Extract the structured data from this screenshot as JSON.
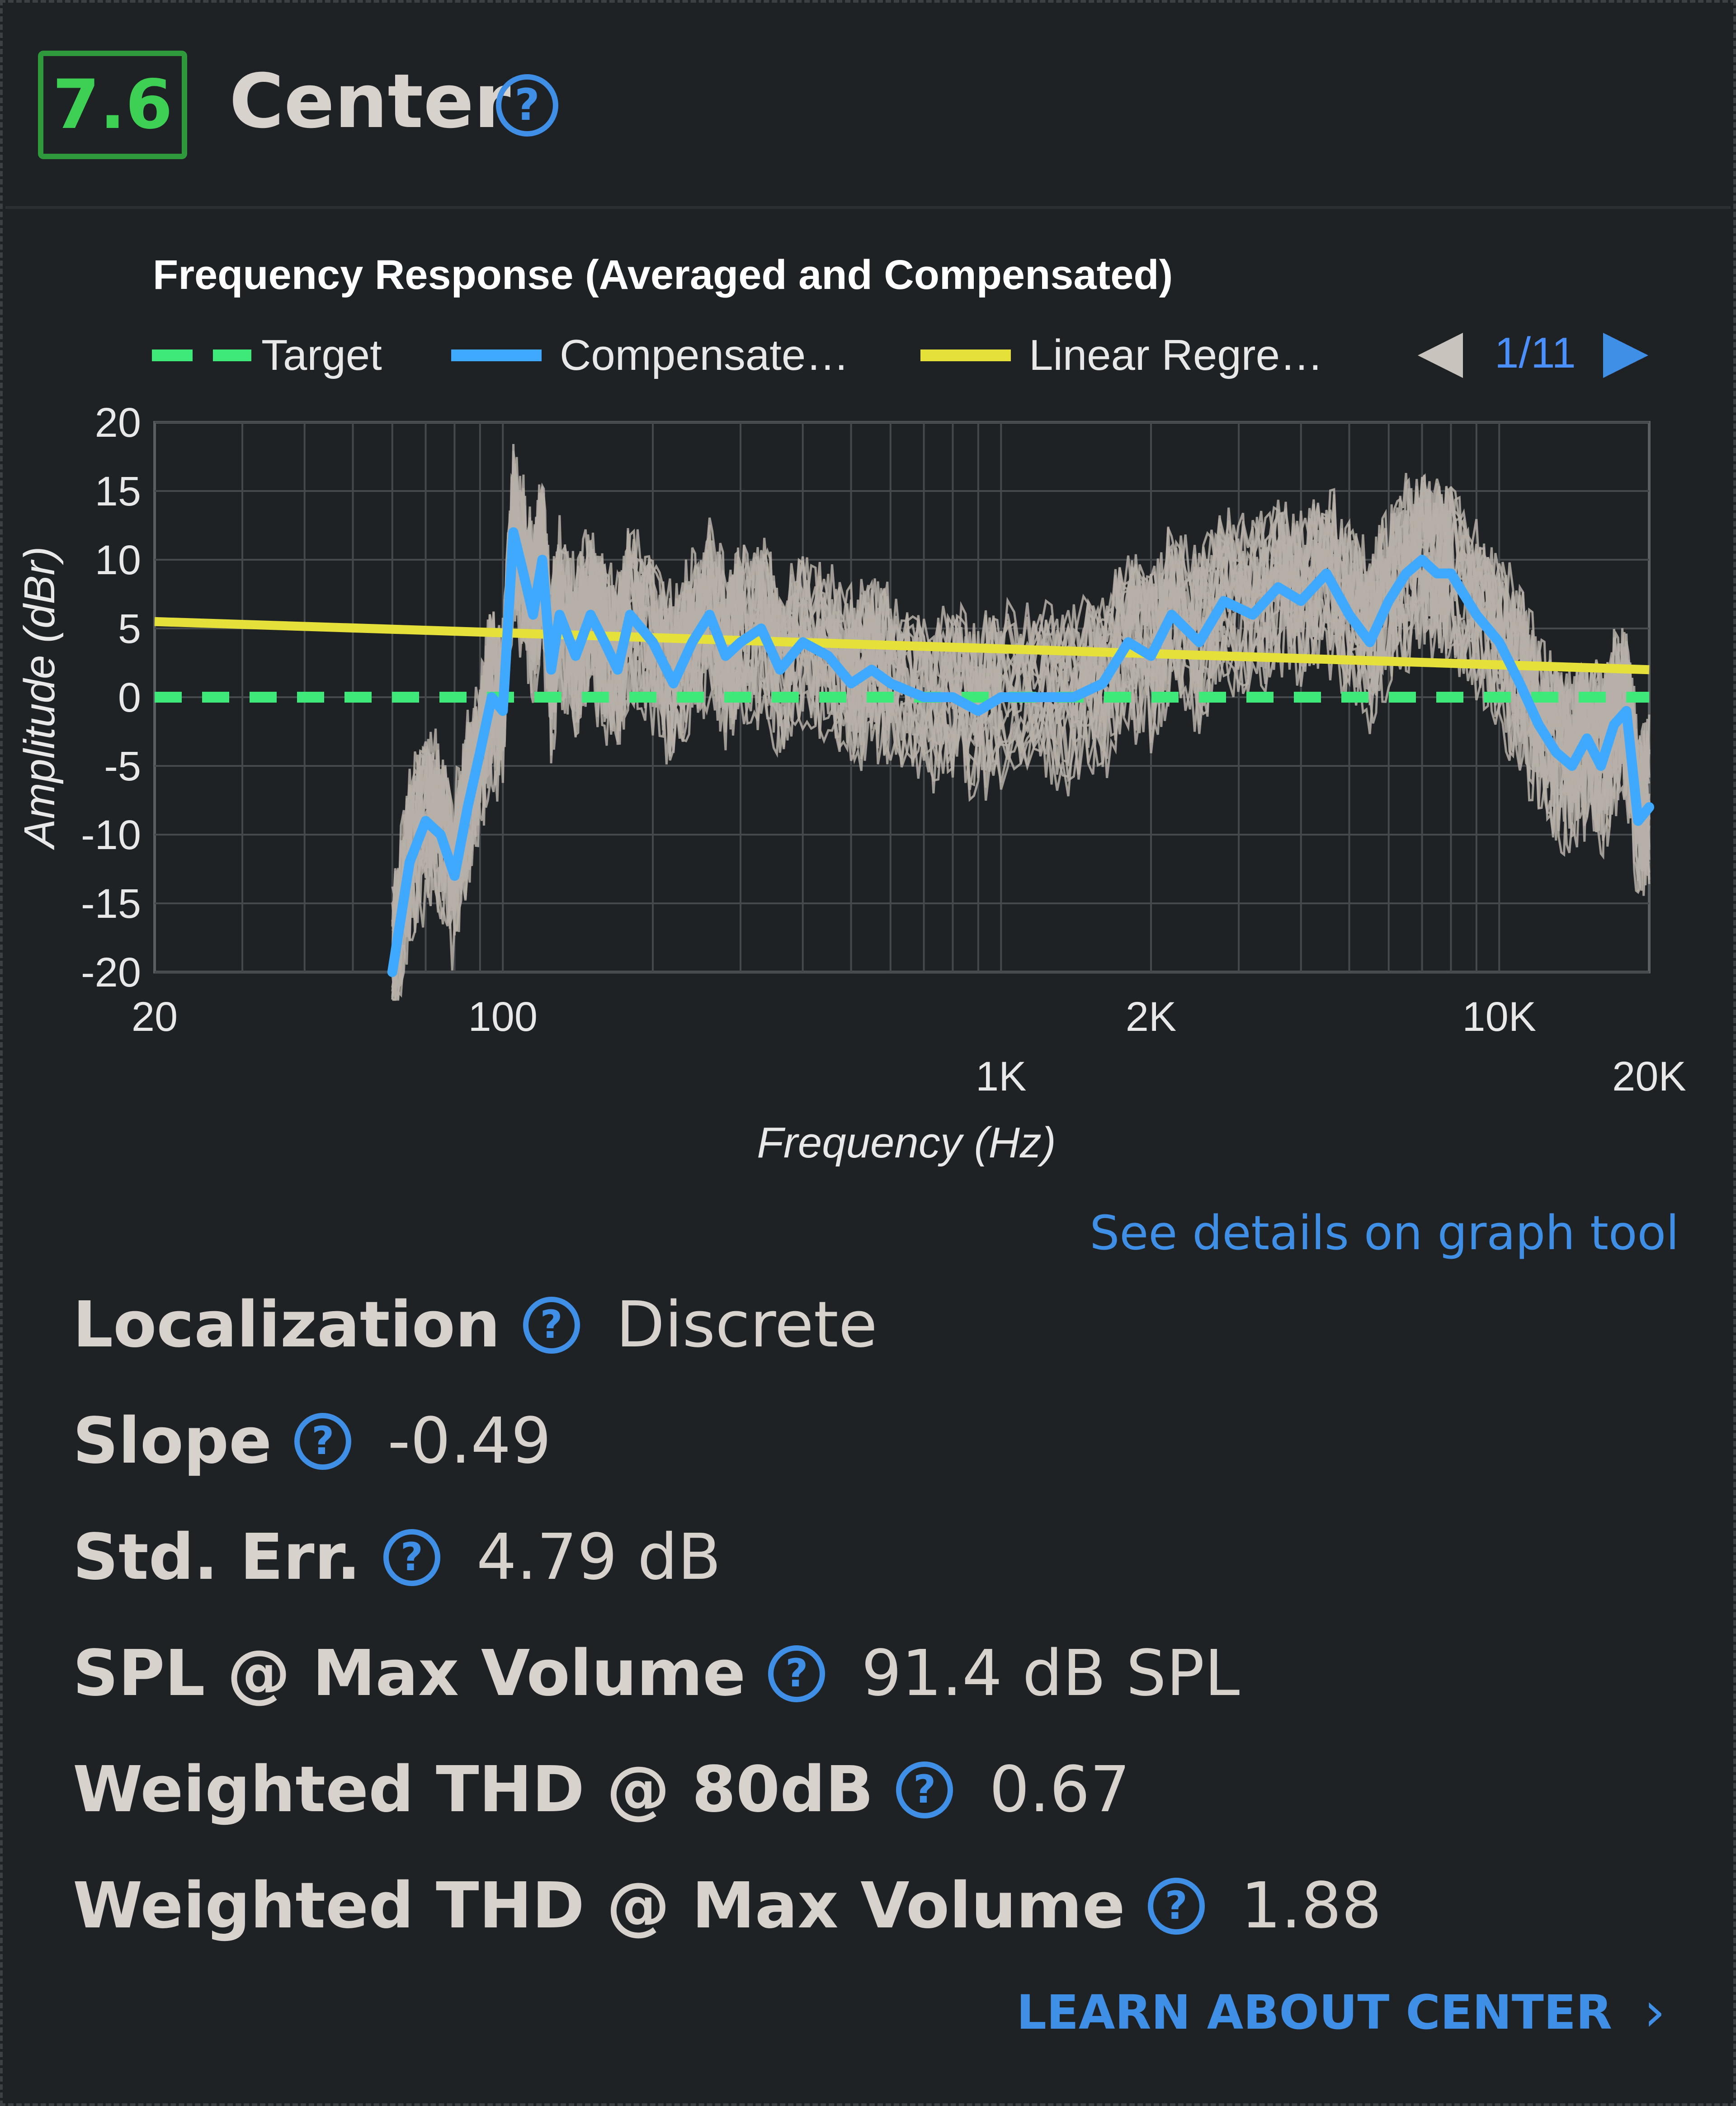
{
  "header": {
    "score": "7.6",
    "title": "Center"
  },
  "chart": {
    "title": "Frequency Response (Averaged and Compensated)",
    "legend": [
      "Target",
      "Compensate…",
      "Linear Regre…"
    ],
    "pager": "1/11",
    "colors": {
      "target": "#3ee879",
      "compensated": "#3ea9ff",
      "regression": "#e6e03a",
      "raw": "#b7b0a8"
    }
  },
  "chart_data": {
    "type": "line",
    "title": "Frequency Response (Averaged and Compensated)",
    "xlabel": "Frequency (Hz)",
    "ylabel": "Amplitude (dBr)",
    "xscale": "log",
    "xlim": [
      20,
      20000
    ],
    "ylim": [
      -20,
      20
    ],
    "yticks": [
      "20",
      "15",
      "10",
      "5",
      "0",
      "-5",
      "-10",
      "-15",
      "-20"
    ],
    "xticks_upper": [
      "20",
      "100",
      "2K",
      "10K"
    ],
    "xticks_lower": [
      "1K",
      "20K"
    ],
    "grid": true,
    "legend_position": "top",
    "series": [
      {
        "name": "Target",
        "style": "dashed",
        "x": [
          20,
          20000
        ],
        "y": [
          0,
          0
        ]
      },
      {
        "name": "Compensate…",
        "x": [
          60,
          65,
          70,
          75,
          80,
          85,
          90,
          95,
          100,
          105,
          110,
          115,
          120,
          125,
          130,
          140,
          150,
          160,
          170,
          180,
          200,
          220,
          240,
          260,
          280,
          300,
          330,
          360,
          400,
          450,
          500,
          550,
          600,
          700,
          800,
          900,
          1000,
          1200,
          1400,
          1600,
          1800,
          2000,
          2200,
          2500,
          2800,
          3200,
          3600,
          4000,
          4500,
          5000,
          5500,
          6000,
          6500,
          7000,
          7500,
          8000,
          9000,
          10000,
          11000,
          12000,
          13000,
          14000,
          15000,
          16000,
          17000,
          18000,
          19000,
          20000
        ],
        "y": [
          -20,
          -12,
          -9,
          -10,
          -13,
          -8,
          -4,
          0,
          -1,
          12,
          9,
          6,
          10,
          2,
          6,
          3,
          6,
          4,
          2,
          6,
          4,
          1,
          4,
          6,
          3,
          4,
          5,
          2,
          4,
          3,
          1,
          2,
          1,
          0,
          0,
          -1,
          0,
          0,
          0,
          1,
          4,
          3,
          6,
          4,
          7,
          6,
          8,
          7,
          9,
          6,
          4,
          7,
          9,
          10,
          9,
          9,
          6,
          4,
          1,
          -2,
          -4,
          -5,
          -3,
          -5,
          -2,
          -1,
          -9,
          -8
        ]
      },
      {
        "name": "Linear Regre…",
        "x": [
          20,
          20000
        ],
        "y": [
          5.5,
          2.0
        ]
      }
    ]
  },
  "links": {
    "graph_tool": "See details on graph tool",
    "learn_more": "LEARN ABOUT CENTER"
  },
  "metrics": [
    {
      "label": "Localization",
      "value": "Discrete"
    },
    {
      "label": "Slope",
      "value": "-0.49"
    },
    {
      "label": "Std. Err.",
      "value": "4.79 dB"
    },
    {
      "label": "SPL @ Max Volume",
      "value": "91.4 dB SPL"
    },
    {
      "label": "Weighted THD @ 80dB",
      "value": "0.67"
    },
    {
      "label": "Weighted THD @ Max Volume",
      "value": "1.88"
    }
  ]
}
